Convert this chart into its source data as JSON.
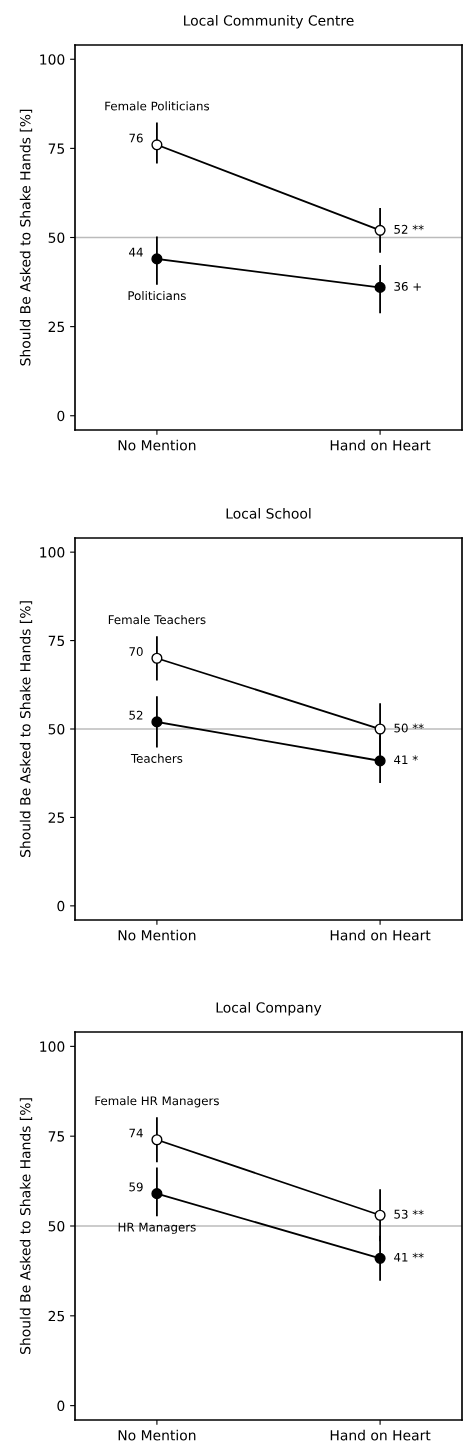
{
  "chart_data": [
    {
      "type": "line",
      "title": "Local Community Centre",
      "ylabel": "Should Be Asked to Shake Hands [%]",
      "categories": [
        "No Mention",
        "Hand on Heart"
      ],
      "ylim": [
        -4,
        104
      ],
      "yticks": [
        0,
        25,
        50,
        75,
        100
      ],
      "grid": false,
      "legend": false,
      "marker": "circle",
      "line_style": "solid",
      "ref_lines": [
        {
          "axis": "y",
          "value": 50,
          "color": "#bbbbbb"
        }
      ],
      "series": [
        {
          "name": "Female Politicians",
          "color": "#ffffff",
          "values": [
            76,
            52
          ],
          "errors": [
            [
              71,
              82
            ],
            [
              46,
              58
            ]
          ],
          "value_labels": [
            "76",
            "52 **"
          ]
        },
        {
          "name": "Politicians",
          "color": "#000000",
          "values": [
            44,
            36
          ],
          "errors": [
            [
              37,
              50
            ],
            [
              29,
              42
            ]
          ],
          "value_labels": [
            "44",
            "36 +"
          ]
        }
      ]
    },
    {
      "type": "line",
      "title": "Local School",
      "ylabel": "Should Be Asked to Shake Hands [%]",
      "categories": [
        "No Mention",
        "Hand on Heart"
      ],
      "ylim": [
        -4,
        104
      ],
      "yticks": [
        0,
        25,
        50,
        75,
        100
      ],
      "grid": false,
      "legend": false,
      "marker": "circle",
      "line_style": "solid",
      "ref_lines": [
        {
          "axis": "y",
          "value": 50,
          "color": "#bbbbbb"
        }
      ],
      "series": [
        {
          "name": "Female Teachers",
          "color": "#ffffff",
          "values": [
            70,
            50
          ],
          "errors": [
            [
              64,
              76
            ],
            [
              43,
              57
            ]
          ],
          "value_labels": [
            "70",
            "50 **"
          ]
        },
        {
          "name": "Teachers",
          "color": "#000000",
          "values": [
            52,
            41
          ],
          "errors": [
            [
              45,
              59
            ],
            [
              35,
              48
            ]
          ],
          "value_labels": [
            "52",
            "41 *"
          ]
        }
      ]
    },
    {
      "type": "line",
      "title": "Local Company",
      "ylabel": "Should Be Asked to Shake Hands [%]",
      "categories": [
        "No Mention",
        "Hand on Heart"
      ],
      "ylim": [
        -4,
        104
      ],
      "yticks": [
        0,
        25,
        50,
        75,
        100
      ],
      "grid": false,
      "legend": false,
      "marker": "circle",
      "line_style": "solid",
      "ref_lines": [
        {
          "axis": "y",
          "value": 50,
          "color": "#bbbbbb"
        }
      ],
      "series": [
        {
          "name": "Female HR Managers",
          "color": "#ffffff",
          "values": [
            74,
            53
          ],
          "errors": [
            [
              68,
              80
            ],
            [
              46,
              60
            ]
          ],
          "value_labels": [
            "74",
            "53 **"
          ]
        },
        {
          "name": "HR Managers",
          "color": "#000000",
          "values": [
            59,
            41
          ],
          "errors": [
            [
              53,
              66
            ],
            [
              35,
              47
            ]
          ],
          "value_labels": [
            "59",
            "41 **"
          ]
        }
      ]
    }
  ]
}
